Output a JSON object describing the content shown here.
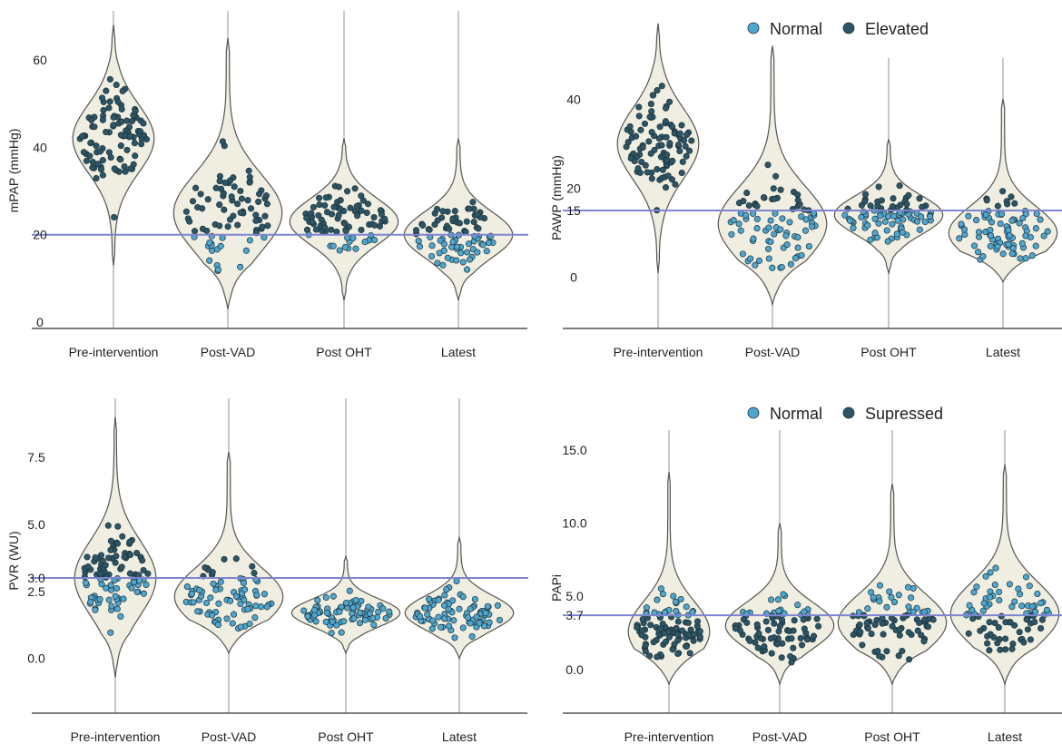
{
  "colors": {
    "normal": "#4fa6cf",
    "dark": "#2c5566",
    "violin_fill": "#efeee0",
    "ref_line": "#7f84d0",
    "guide": "#c8c8c8"
  },
  "chart_data": [
    {
      "type": "violin",
      "ylabel": "mPAP (mmHg)",
      "categories": [
        "Pre-intervention",
        "Post-VAD",
        "Post OHT",
        "Latest"
      ],
      "yticks": [
        0,
        20,
        40,
        60
      ],
      "ytick_labels": [
        "0",
        "20",
        "40",
        "60"
      ],
      "ylim": [
        0,
        70
      ],
      "reference_line": 20,
      "legend": null,
      "groups": [
        {
          "name": "Pre-intervention",
          "min": 13,
          "max": 68,
          "median": 42
        },
        {
          "name": "Post-VAD",
          "min": 3,
          "max": 65,
          "median": 25
        },
        {
          "name": "Post OHT",
          "min": 5,
          "max": 42,
          "median": 23
        },
        {
          "name": "Latest",
          "min": 5,
          "max": 42,
          "median": 20
        }
      ]
    },
    {
      "type": "violin",
      "ylabel": "PAWP (mmHg)",
      "categories": [
        "Pre-intervention",
        "Post-VAD",
        "Post OHT",
        "Latest"
      ],
      "yticks": [
        0,
        15,
        20,
        40
      ],
      "ytick_labels": [
        "0",
        "15",
        "20",
        "40"
      ],
      "ylim": [
        -8,
        48
      ],
      "reference_line": 15,
      "legend": {
        "position": "top-right",
        "entries": [
          "Normal",
          "Elevated"
        ]
      },
      "groups": [
        {
          "name": "Pre-intervention",
          "min": 1,
          "max": 57,
          "median": 30
        },
        {
          "name": "Post-VAD",
          "min": -6,
          "max": 52,
          "median": 12
        },
        {
          "name": "Post OHT",
          "min": 1,
          "max": 31,
          "median": 14
        },
        {
          "name": "Latest",
          "min": -1,
          "max": 40,
          "median": 10
        }
      ]
    },
    {
      "type": "violin",
      "ylabel": "PVR (WU)",
      "categories": [
        "Pre-intervention",
        "Post-VAD",
        "Post OHT",
        "Latest"
      ],
      "yticks": [
        0,
        2.5,
        3,
        5,
        7.5
      ],
      "ytick_labels": [
        "0.0",
        "2.5",
        "3.0",
        "5.0",
        "7.5"
      ],
      "ylim": [
        -1.5,
        9.5
      ],
      "reference_line": 3,
      "legend": null,
      "groups": [
        {
          "name": "Pre-intervention",
          "min": -0.7,
          "max": 9.0,
          "median": 3.0
        },
        {
          "name": "Post-VAD",
          "min": 0.2,
          "max": 7.7,
          "median": 2.3
        },
        {
          "name": "Post OHT",
          "min": 0.2,
          "max": 3.8,
          "median": 1.7
        },
        {
          "name": "Latest",
          "min": 0.0,
          "max": 4.5,
          "median": 1.7
        }
      ]
    },
    {
      "type": "violin",
      "ylabel": "PAPi",
      "categories": [
        "Pre-intervention",
        "Post-VAD",
        "Post OHT",
        "Latest"
      ],
      "yticks": [
        0,
        3.7,
        5,
        10,
        15
      ],
      "ytick_labels": [
        "0.0",
        "3.7",
        "5.0",
        "10.0",
        "15.0"
      ],
      "ylim": [
        -2,
        16
      ],
      "reference_line": 3.7,
      "legend": {
        "position": "top-right",
        "entries": [
          "Normal",
          "Supressed"
        ]
      },
      "groups": [
        {
          "name": "Pre-intervention",
          "min": -1.0,
          "max": 13.5,
          "median": 2.6
        },
        {
          "name": "Post-VAD",
          "min": -1.0,
          "max": 10.0,
          "median": 3.0
        },
        {
          "name": "Post OHT",
          "min": -1.0,
          "max": 12.7,
          "median": 3.2
        },
        {
          "name": "Latest",
          "min": -1.0,
          "max": 14.0,
          "median": 3.8
        }
      ]
    }
  ]
}
